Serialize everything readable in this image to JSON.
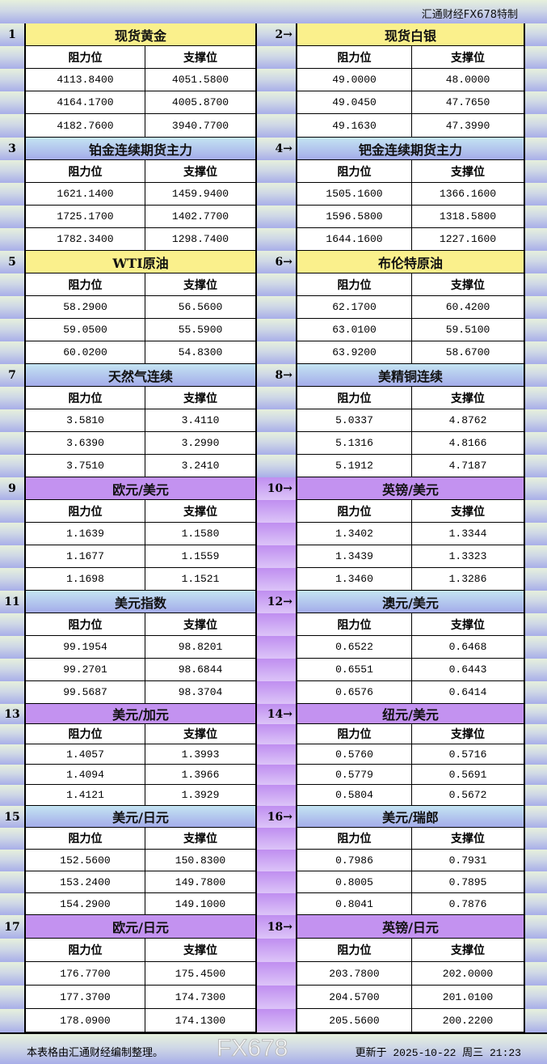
{
  "brand": "汇通财经FX678特制",
  "column_headers": {
    "resistance": "阻力位",
    "support": "支撑位"
  },
  "colors": {
    "yellow": "#faf08c",
    "blue": "#a4acea",
    "purple": "#c392f0"
  },
  "blocks": [
    {
      "left": {
        "num": "1",
        "title": "现货黄金",
        "res": [
          "4113.8400",
          "4164.1700",
          "4182.7600"
        ],
        "sup": [
          "4051.5800",
          "4005.8700",
          "3940.7700"
        ]
      },
      "right": {
        "num": "2→",
        "title": "现货白银",
        "res": [
          "49.0000",
          "49.0450",
          "49.1630"
        ],
        "sup": [
          "48.0000",
          "47.7650",
          "47.3990"
        ]
      },
      "style": "yellow"
    },
    {
      "left": {
        "num": "3",
        "title": "铂金连续期货主力",
        "res": [
          "1621.1400",
          "1725.1700",
          "1782.3400"
        ],
        "sup": [
          "1459.9400",
          "1402.7700",
          "1298.7400"
        ]
      },
      "right": {
        "num": "4→",
        "title": "钯金连续期货主力",
        "res": [
          "1505.1600",
          "1596.5800",
          "1644.1600"
        ],
        "sup": [
          "1366.1600",
          "1318.5800",
          "1227.1600"
        ]
      },
      "style": "blue"
    },
    {
      "left": {
        "num": "5",
        "title": "WTI原油",
        "res": [
          "58.2900",
          "59.0500",
          "60.0200"
        ],
        "sup": [
          "56.5600",
          "55.5900",
          "54.8300"
        ]
      },
      "right": {
        "num": "6→",
        "title": "布伦特原油",
        "res": [
          "62.1700",
          "63.0100",
          "63.9200"
        ],
        "sup": [
          "60.4200",
          "59.5100",
          "58.6700"
        ]
      },
      "style": "yellow"
    },
    {
      "left": {
        "num": "7",
        "title": "天然气连续",
        "res": [
          "3.5810",
          "3.6390",
          "3.7510"
        ],
        "sup": [
          "3.4110",
          "3.2990",
          "3.2410"
        ]
      },
      "right": {
        "num": "8→",
        "title": "美精铜连续",
        "res": [
          "5.0337",
          "5.1316",
          "5.1912"
        ],
        "sup": [
          "4.8762",
          "4.8166",
          "4.7187"
        ]
      },
      "style": "blue"
    },
    {
      "left": {
        "num": "9",
        "title": "欧元/美元",
        "res": [
          "1.1639",
          "1.1677",
          "1.1698"
        ],
        "sup": [
          "1.1580",
          "1.1559",
          "1.1521"
        ]
      },
      "right": {
        "num": "10→",
        "title": "英镑/美元",
        "res": [
          "1.3402",
          "1.3439",
          "1.3460"
        ],
        "sup": [
          "1.3344",
          "1.3323",
          "1.3286"
        ]
      },
      "style": "purple"
    },
    {
      "left": {
        "num": "11",
        "title": "美元指数",
        "res": [
          "99.1954",
          "99.2701",
          "99.5687"
        ],
        "sup": [
          "98.8201",
          "98.6844",
          "98.3704"
        ]
      },
      "right": {
        "num": "12→",
        "title": "澳元/美元",
        "res": [
          "0.6522",
          "0.6551",
          "0.6576"
        ],
        "sup": [
          "0.6468",
          "0.6443",
          "0.6414"
        ]
      },
      "style": "blue"
    },
    {
      "left": {
        "num": "13",
        "title": "美元/加元",
        "res": [
          "1.4057",
          "1.4094",
          "1.4121"
        ],
        "sup": [
          "1.3993",
          "1.3966",
          "1.3929"
        ]
      },
      "right": {
        "num": "14→",
        "title": "纽元/美元",
        "res": [
          "0.5760",
          "0.5779",
          "0.5804"
        ],
        "sup": [
          "0.5716",
          "0.5691",
          "0.5672"
        ]
      },
      "style": "purple"
    },
    {
      "left": {
        "num": "15",
        "title": "美元/日元",
        "res": [
          "152.5600",
          "153.2400",
          "154.2900"
        ],
        "sup": [
          "150.8300",
          "149.7800",
          "149.1000"
        ]
      },
      "right": {
        "num": "16→",
        "title": "美元/瑞郎",
        "res": [
          "0.7986",
          "0.8005",
          "0.8041"
        ],
        "sup": [
          "0.7931",
          "0.7895",
          "0.7876"
        ]
      },
      "style": "blue"
    },
    {
      "left": {
        "num": "17",
        "title": "欧元/日元",
        "res": [
          "176.7700",
          "177.3700",
          "178.0900"
        ],
        "sup": [
          "175.4500",
          "174.7300",
          "174.1300"
        ]
      },
      "right": {
        "num": "18→",
        "title": "英镑/日元",
        "res": [
          "203.7800",
          "204.5700",
          "205.5600"
        ],
        "sup": [
          "202.0000",
          "201.0100",
          "200.2200"
        ]
      },
      "style": "purple"
    }
  ],
  "footer": {
    "note": "本表格由汇通财经编制整理。",
    "updated": "更新于 2025-10-22 周三 21:23"
  },
  "watermark": "FX678"
}
